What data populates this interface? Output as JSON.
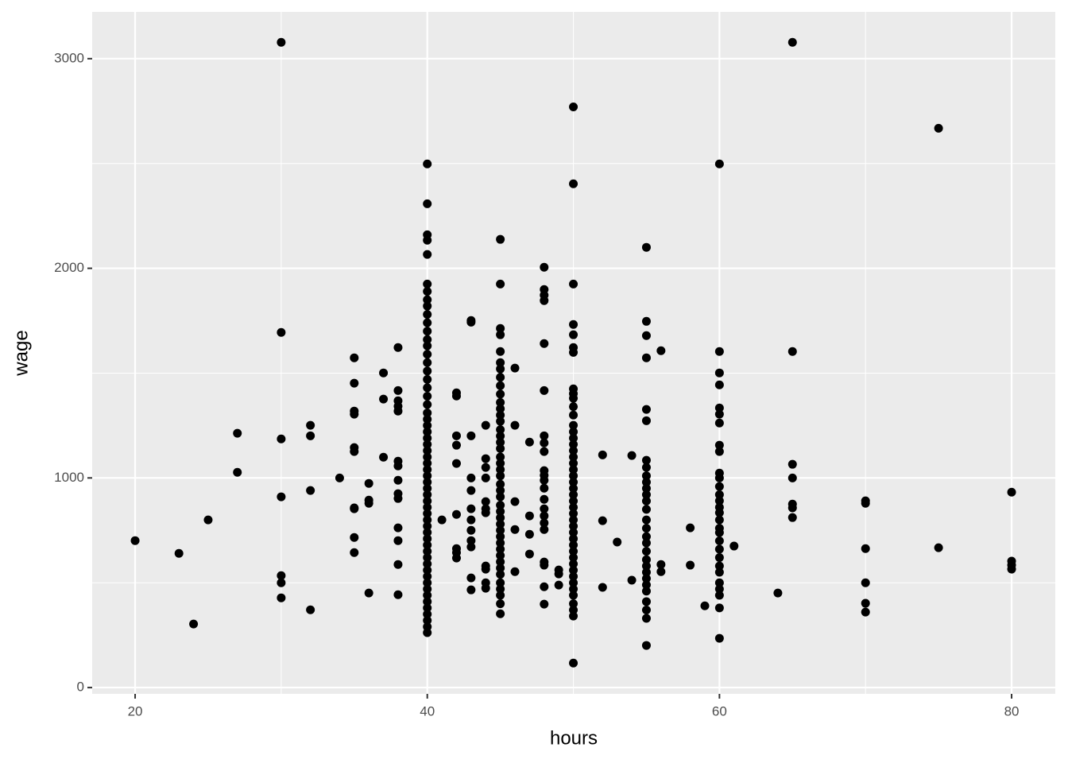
{
  "chart_data": {
    "type": "scatter",
    "x_label": "hours",
    "y_label": "wage",
    "xlim": [
      17.06,
      82.99
    ],
    "ylim": [
      -30,
      3223
    ],
    "xticks": [
      20,
      40,
      60,
      80
    ],
    "yticks": [
      0,
      1000,
      2000,
      3000
    ],
    "grid": true,
    "color": "#000000",
    "x": [
      20,
      23,
      24,
      25,
      27,
      27,
      30,
      30,
      30,
      30,
      30,
      30,
      30,
      32,
      32,
      32,
      32,
      34,
      35,
      35,
      35,
      35,
      35,
      35,
      35,
      35,
      35,
      35,
      36,
      36,
      36,
      36,
      37,
      37,
      37,
      38,
      38,
      38,
      38,
      38,
      38,
      38,
      38,
      38,
      38,
      38,
      38,
      38,
      38,
      40,
      40,
      40,
      40,
      40,
      40,
      40,
      40,
      40,
      40,
      40,
      40,
      40,
      40,
      40,
      40,
      40,
      40,
      40,
      40,
      40,
      40,
      40,
      40,
      40,
      40,
      40,
      40,
      40,
      40,
      40,
      40,
      40,
      40,
      40,
      40,
      40,
      40,
      40,
      40,
      40,
      40,
      40,
      40,
      40,
      40,
      40,
      40,
      40,
      40,
      40,
      40,
      40,
      40,
      40,
      40,
      40,
      41,
      42,
      42,
      42,
      42,
      42,
      42,
      42,
      42,
      42,
      43,
      43,
      43,
      43,
      43,
      43,
      43,
      43,
      43,
      43,
      43,
      43,
      44,
      44,
      44,
      44,
      44,
      44,
      44,
      44,
      44,
      44,
      44,
      45,
      45,
      45,
      45,
      45,
      45,
      45,
      45,
      45,
      45,
      45,
      45,
      45,
      45,
      45,
      45,
      45,
      45,
      45,
      45,
      45,
      45,
      45,
      45,
      45,
      45,
      45,
      45,
      45,
      45,
      45,
      45,
      45,
      45,
      45,
      45,
      45,
      45,
      45,
      45,
      45,
      45,
      46,
      46,
      46,
      46,
      46,
      47,
      47,
      47,
      47,
      48,
      48,
      48,
      48,
      48,
      48,
      48,
      48,
      48,
      48,
      48,
      48,
      48,
      48,
      48,
      48,
      48,
      48,
      48,
      48,
      48,
      48,
      49,
      49,
      49,
      50,
      50,
      50,
      50,
      50,
      50,
      50,
      50,
      50,
      50,
      50,
      50,
      50,
      50,
      50,
      50,
      50,
      50,
      50,
      50,
      50,
      50,
      50,
      50,
      50,
      50,
      50,
      50,
      50,
      50,
      50,
      50,
      50,
      50,
      50,
      50,
      50,
      50,
      50,
      50,
      50,
      50,
      50,
      50,
      52,
      52,
      52,
      53,
      54,
      54,
      55,
      55,
      55,
      55,
      55,
      55,
      55,
      55,
      55,
      55,
      55,
      55,
      55,
      55,
      55,
      55,
      55,
      55,
      55,
      55,
      55,
      55,
      55,
      55,
      55,
      55,
      55,
      55,
      55,
      56,
      56,
      56,
      58,
      58,
      59,
      60,
      60,
      60,
      60,
      60,
      60,
      60,
      60,
      60,
      60,
      60,
      60,
      60,
      60,
      60,
      60,
      60,
      60,
      60,
      60,
      60,
      60,
      60,
      60,
      60,
      60,
      60,
      60,
      60,
      61,
      64,
      65,
      65,
      65,
      65,
      65,
      65,
      65,
      70,
      70,
      70,
      70,
      70,
      70,
      75,
      75,
      80,
      80,
      80,
      80
    ],
    "values": [
      701,
      640,
      303,
      800,
      1213,
      1027,
      3078,
      1694,
      1186,
      910,
      534,
      500,
      428,
      1251,
      1201,
      940,
      371,
      1000,
      1573,
      1452,
      1319,
      1304,
      1145,
      1126,
      857,
      853,
      716,
      644,
      974,
      894,
      879,
      451,
      1501,
      1376,
      1099,
      1622,
      1417,
      1368,
      1342,
      1319,
      1080,
      1057,
      989,
      925,
      902,
      762,
      701,
      587,
      443,
      2498,
      2308,
      2160,
      2134,
      2066,
      1925,
      1890,
      1850,
      1820,
      1780,
      1740,
      1700,
      1660,
      1630,
      1590,
      1550,
      1510,
      1470,
      1430,
      1390,
      1350,
      1310,
      1280,
      1250,
      1220,
      1190,
      1160,
      1130,
      1100,
      1070,
      1040,
      1010,
      980,
      950,
      920,
      890,
      860,
      830,
      800,
      770,
      740,
      710,
      680,
      650,
      620,
      590,
      560,
      530,
      500,
      470,
      440,
      410,
      380,
      350,
      320,
      290,
      262,
      800,
      1201,
      1156,
      1069,
      1391,
      1406,
      826,
      663,
      644,
      618,
      1751,
      1743,
      1201,
      1000,
      940,
      853,
      800,
      750,
      701,
      671,
      523,
      466,
      1251,
      1092,
      1050,
      1000,
      887,
      853,
      834,
      580,
      565,
      500,
      474,
      2138,
      1925,
      1713,
      1683,
      1603,
      1550,
      1520,
      1480,
      1440,
      1400,
      1360,
      1330,
      1300,
      1270,
      1230,
      1200,
      1170,
      1140,
      1100,
      1070,
      1040,
      1010,
      970,
      940,
      910,
      870,
      840,
      810,
      780,
      750,
      720,
      690,
      660,
      630,
      600,
      570,
      540,
      500,
      470,
      440,
      400,
      352,
      1524,
      1251,
      887,
      754,
      553,
      1171,
      819,
      731,
      637,
      2005,
      1899,
      1872,
      1846,
      1641,
      1417,
      1201,
      1167,
      1126,
      1035,
      1012,
      989,
      951,
      898,
      853,
      819,
      785,
      754,
      599,
      584,
      481,
      398,
      561,
      542,
      489,
      2770,
      2403,
      1925,
      1732,
      1683,
      1622,
      1599,
      1425,
      1402,
      1251,
      1380,
      1340,
      1300,
      1220,
      1190,
      1160,
      1130,
      1100,
      1070,
      1040,
      1010,
      980,
      950,
      920,
      890,
      860,
      830,
      800,
      770,
      740,
      710,
      680,
      650,
      620,
      590,
      560,
      530,
      500,
      470,
      440,
      400,
      370,
      341,
      117,
      1110,
      796,
      478,
      694,
      1107,
      512,
      2100,
      1747,
      1679,
      1573,
      1327,
      1273,
      1084,
      1050,
      1010,
      980,
      950,
      920,
      890,
      850,
      800,
      760,
      720,
      690,
      650,
      610,
      580,
      550,
      520,
      490,
      460,
      410,
      370,
      330,
      201,
      1607,
      587,
      553,
      762,
      584,
      390,
      2498,
      1603,
      1501,
      1444,
      1334,
      1304,
      1262,
      1156,
      1126,
      1023,
      959,
      891,
      834,
      739,
      1000,
      920,
      860,
      800,
      760,
      700,
      660,
      620,
      580,
      550,
      500,
      470,
      440,
      380,
      235,
      675,
      451,
      3078,
      1603,
      1065,
      1000,
      875,
      857,
      811,
      891,
      879,
      663,
      500,
      402,
      360,
      2668,
      667,
      932,
      603,
      584,
      565
    ]
  }
}
